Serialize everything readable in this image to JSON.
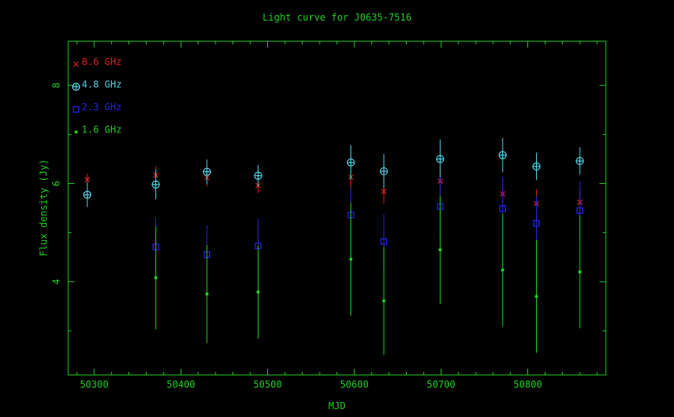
{
  "chart_data": {
    "type": "scatter",
    "title": "Light curve for J0635-7516",
    "xlabel": "MJD",
    "ylabel": "Flux density (Jy)",
    "xlim": [
      50270,
      50890
    ],
    "ylim": [
      2.1,
      8.9
    ],
    "xticks": [
      50300,
      50400,
      50500,
      50600,
      50700,
      50800
    ],
    "yticks": [
      4,
      6,
      8
    ],
    "grid": false,
    "legend_position": "top-left",
    "colors": {
      "axis": "#21cc21"
    },
    "series": [
      {
        "name": "8.6 GHz",
        "marker": "x",
        "color": "#e02020",
        "points": [
          {
            "x": 50292,
            "y": 6.08,
            "err": 0.12
          },
          {
            "x": 50371,
            "y": 6.17,
            "err": 0.18
          },
          {
            "x": 50430,
            "y": 6.12,
            "err": 0.18
          },
          {
            "x": 50489,
            "y": 5.96,
            "err": 0.15
          },
          {
            "x": 50596,
            "y": 6.13,
            "err": 0.25
          },
          {
            "x": 50634,
            "y": 5.84,
            "err": 0.25
          },
          {
            "x": 50699,
            "y": 6.05,
            "err": 0.3
          },
          {
            "x": 50771,
            "y": 5.79,
            "err": 0.3
          },
          {
            "x": 50810,
            "y": 5.59,
            "err": 0.3
          },
          {
            "x": 50860,
            "y": 5.62,
            "err": 0.25
          }
        ]
      },
      {
        "name": "4.8 GHz",
        "marker": "circle-plus",
        "color": "#4fd3e6",
        "points": [
          {
            "x": 50292,
            "y": 5.77,
            "err": 0.25
          },
          {
            "x": 50371,
            "y": 5.98,
            "err": 0.3
          },
          {
            "x": 50430,
            "y": 6.24,
            "err": 0.25
          },
          {
            "x": 50489,
            "y": 6.16,
            "err": 0.22
          },
          {
            "x": 50596,
            "y": 6.43,
            "err": 0.35
          },
          {
            "x": 50634,
            "y": 6.25,
            "err": 0.35
          },
          {
            "x": 50699,
            "y": 6.5,
            "err": 0.4
          },
          {
            "x": 50771,
            "y": 6.58,
            "err": 0.35
          },
          {
            "x": 50810,
            "y": 6.35,
            "err": 0.28
          },
          {
            "x": 50860,
            "y": 6.46,
            "err": 0.28
          }
        ]
      },
      {
        "name": "2.3 GHz",
        "marker": "square",
        "color": "#2424e0",
        "points": [
          {
            "x": 50371,
            "y": 4.71,
            "err": 0.6
          },
          {
            "x": 50430,
            "y": 4.55,
            "err": 0.6
          },
          {
            "x": 50489,
            "y": 4.73,
            "err": 0.55
          },
          {
            "x": 50596,
            "y": 5.36,
            "err": 0.55
          },
          {
            "x": 50634,
            "y": 4.82,
            "err": 0.55
          },
          {
            "x": 50699,
            "y": 5.53,
            "err": 0.6
          },
          {
            "x": 50771,
            "y": 5.49,
            "err": 0.65
          },
          {
            "x": 50810,
            "y": 5.19,
            "err": 0.55
          },
          {
            "x": 50860,
            "y": 5.45,
            "err": 0.6
          }
        ]
      },
      {
        "name": "1.6 GHz",
        "marker": "dot",
        "color": "#1ed21e",
        "points": [
          {
            "x": 50371,
            "y": 4.08,
            "err": 1.05
          },
          {
            "x": 50430,
            "y": 3.75,
            "err": 1.0
          },
          {
            "x": 50489,
            "y": 3.79,
            "err": 0.95
          },
          {
            "x": 50596,
            "y": 4.46,
            "err": 1.15
          },
          {
            "x": 50634,
            "y": 3.61,
            "err": 1.1
          },
          {
            "x": 50699,
            "y": 4.65,
            "err": 1.1
          },
          {
            "x": 50771,
            "y": 4.24,
            "err": 1.15
          },
          {
            "x": 50810,
            "y": 3.7,
            "err": 1.15
          },
          {
            "x": 50860,
            "y": 4.2,
            "err": 1.15
          }
        ]
      }
    ]
  }
}
